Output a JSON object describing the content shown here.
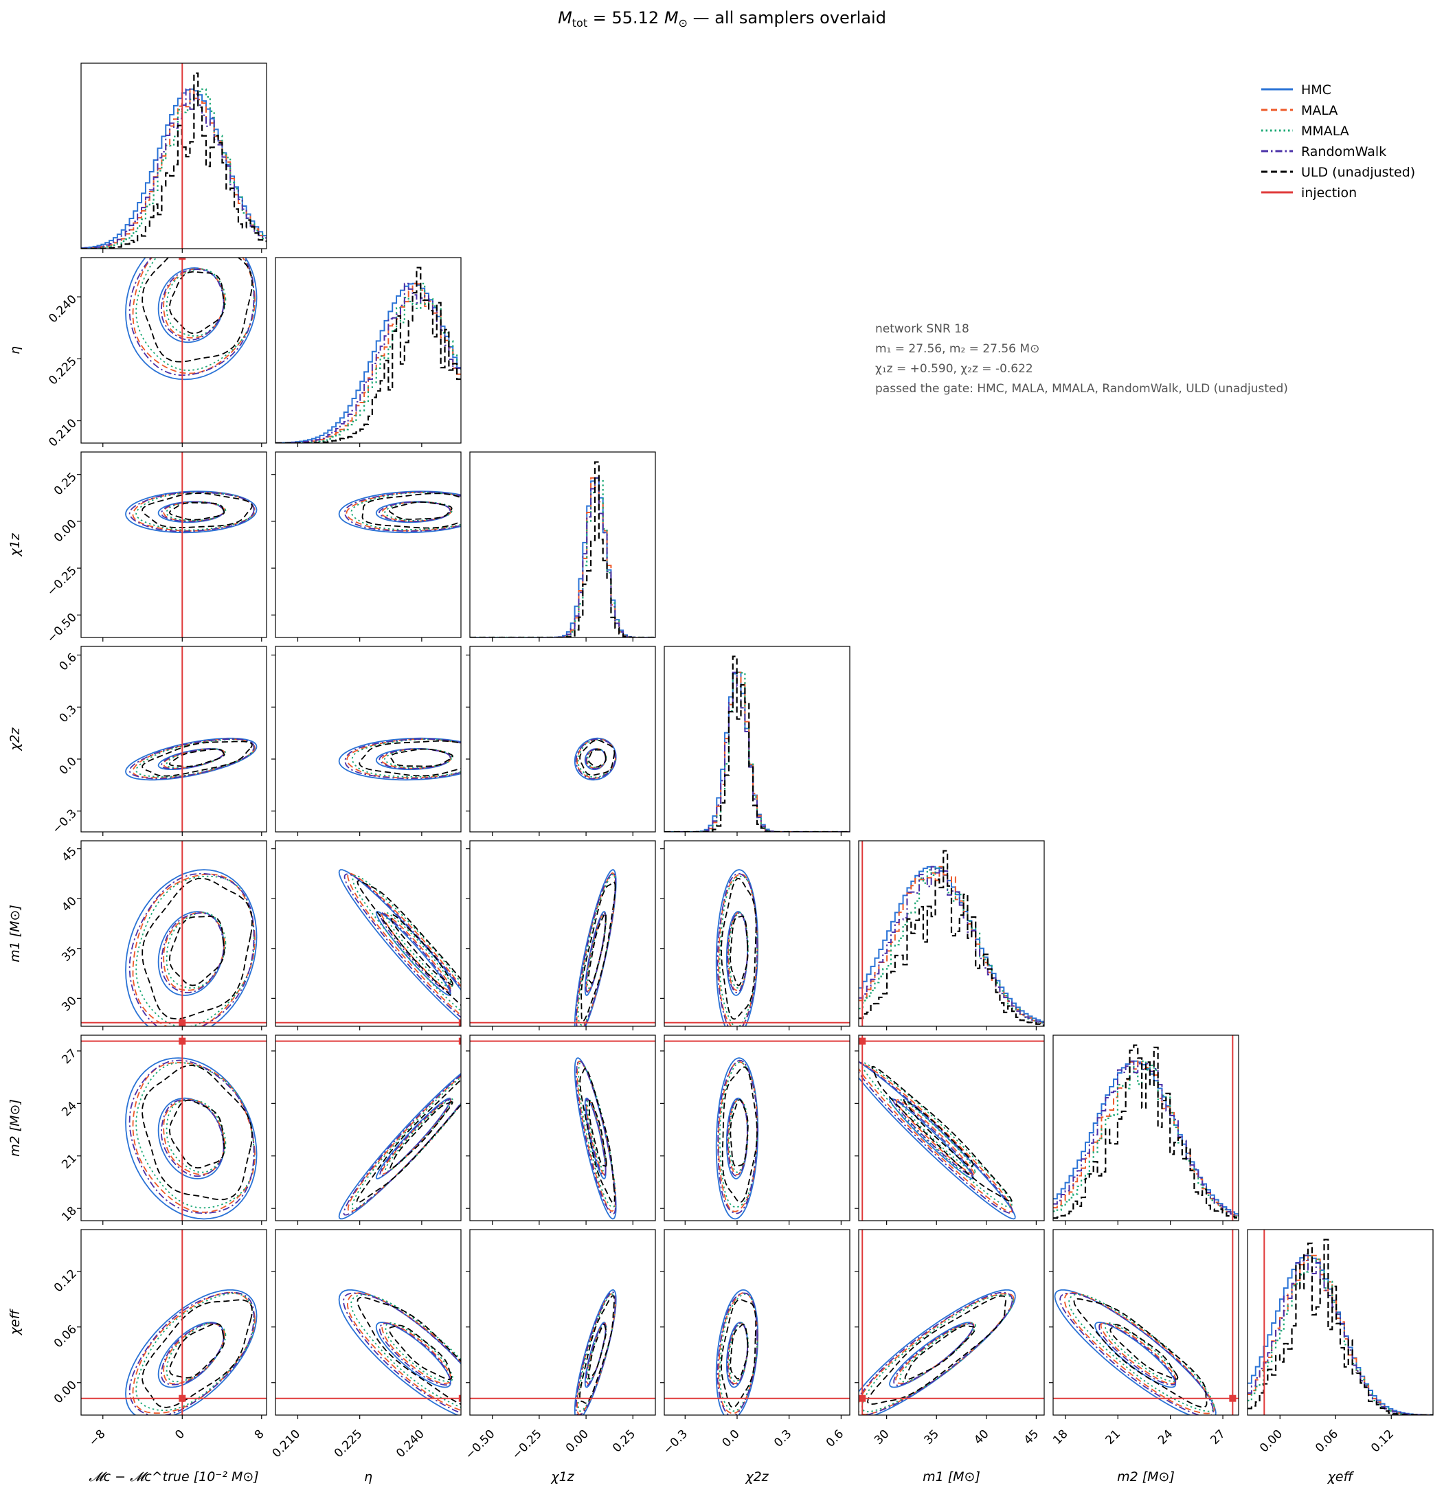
{
  "title": "M_tot = 55.12 M_⊙ — all samplers overlaid",
  "title_parts": {
    "sym": "M",
    "sub": "tot",
    "rest": " = 55.12 ",
    "msym": "M",
    "msub": "⊙",
    "tail": " — all samplers overlaid"
  },
  "info_lines": [
    "network SNR 18",
    "m₁ = 27.56, m₂ = 27.56 M⊙",
    "χ₁z = +0.590, χ₂z = -0.622",
    "passed the gate: HMC, MALA, MMALA, RandomWalk, ULD (unadjusted)"
  ],
  "colors": {
    "HMC": "#2a73d6",
    "MALA": "#ee5a2a",
    "MMALA": "#1aa874",
    "RandomWalk": "#4b31a8",
    "ULD": "#000000",
    "injection": "#e03a3a"
  },
  "chart_data": {
    "type": "corner",
    "grid": false,
    "legend_position": "upper-right",
    "legend": [
      {
        "label": "HMC",
        "style": "solid",
        "color_key": "HMC"
      },
      {
        "label": "MALA",
        "style": "dashed",
        "color_key": "MALA"
      },
      {
        "label": "MMALA",
        "style": "dotted",
        "color_key": "MMALA"
      },
      {
        "label": "RandomWalk",
        "style": "dashdot",
        "color_key": "RandomWalk"
      },
      {
        "label": "ULD (unadjusted)",
        "style": "dashed",
        "color_key": "ULD"
      },
      {
        "label": "injection",
        "style": "solid",
        "color_key": "injection"
      }
    ],
    "params": [
      {
        "key": "dMc",
        "label": "𝓜c − 𝓜c^true  [10⁻² M⊙]",
        "range": [
          -10.2,
          8.5
        ],
        "ticks": [
          -8,
          0,
          8
        ],
        "tick_labels": [
          "−8",
          "0",
          "8"
        ],
        "injection": 0,
        "mean": 0.9,
        "sd": 3.3
      },
      {
        "key": "eta",
        "label": "η",
        "range": [
          0.2046,
          0.2495
        ],
        "ticks": [
          0.21,
          0.225,
          0.24
        ],
        "tick_labels": [
          "0.210",
          "0.225",
          "0.240"
        ],
        "injection": 0.2498,
        "mean": 0.238,
        "sd": 0.009
      },
      {
        "key": "chi1z",
        "label": "χ1z",
        "range": [
          -0.62,
          0.37
        ],
        "ticks": [
          -0.5,
          -0.25,
          0.0,
          0.25
        ],
        "tick_labels": [
          "−0.50",
          "−0.25",
          "0.00",
          "0.25"
        ],
        "injection": 0.59,
        "mean": 0.05,
        "sd": 0.055
      },
      {
        "key": "chi2z",
        "label": "χ2z",
        "range": [
          -0.42,
          0.65
        ],
        "ticks": [
          -0.3,
          0.0,
          0.3,
          0.6
        ],
        "tick_labels": [
          "−0.3",
          "0.0",
          "0.3",
          "0.6"
        ],
        "injection": -0.622,
        "mean": 0.0,
        "sd": 0.06
      },
      {
        "key": "m1",
        "label": "m1  [M⊙]",
        "range": [
          27.2,
          45.8
        ],
        "ticks": [
          30,
          35,
          40,
          45
        ],
        "tick_labels": [
          "30",
          "35",
          "40",
          "45"
        ],
        "injection": 27.56,
        "mean": 34.5,
        "sd": 4.2
      },
      {
        "key": "m2",
        "label": "m2  [M⊙]",
        "range": [
          17.3,
          27.9
        ],
        "ticks": [
          18,
          21,
          24,
          27
        ],
        "tick_labels": [
          "18",
          "21",
          "24",
          "27"
        ],
        "injection": 27.56,
        "mean": 22.0,
        "sd": 2.3
      },
      {
        "key": "chieff",
        "label": "χeff",
        "range": [
          -0.035,
          0.165
        ],
        "ticks": [
          0.0,
          0.06,
          0.12
        ],
        "tick_labels": [
          "0.00",
          "0.06",
          "0.12"
        ],
        "injection": -0.017,
        "mean": 0.03,
        "sd": 0.035
      }
    ]
  }
}
